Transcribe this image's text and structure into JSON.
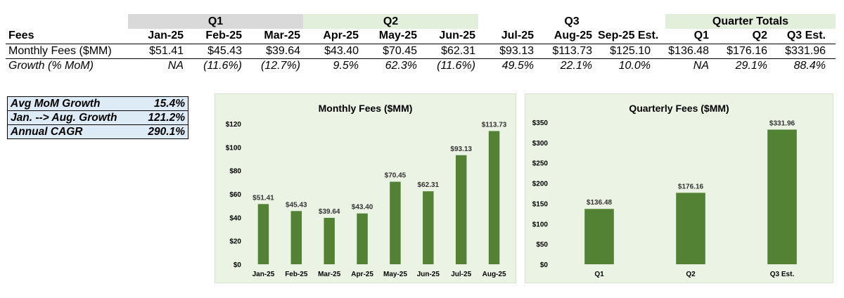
{
  "table": {
    "quarters": [
      "Q1",
      "Q2",
      "Q3",
      "Quarter Totals"
    ],
    "header": [
      "Fees",
      "Jan-25",
      "Feb-25",
      "Mar-25",
      "Apr-25",
      "May-25",
      "Jun-25",
      "Jul-25",
      "Aug-25",
      "Sep-25 Est.",
      "Q1",
      "Q2",
      "Q3 Est."
    ],
    "fees_row": [
      "Monthly Fees ($MM)",
      "$51.41",
      "$45.43",
      "$39.64",
      "$43.40",
      "$70.45",
      "$62.31",
      "$93.13",
      "$113.73",
      "$125.10",
      "$136.48",
      "$176.16",
      "$331.96"
    ],
    "growth_row": [
      "Growth (% MoM)",
      "NA",
      "(11.6%)",
      "(12.7%)",
      "9.5%",
      "62.3%",
      "(11.6%)",
      "49.5%",
      "22.1%",
      "10.0%",
      "NA",
      "29.1%",
      "88.4%"
    ]
  },
  "summary": [
    {
      "label": "Avg MoM Growth",
      "value": "15.4%"
    },
    {
      "label": "Jan. --> Aug. Growth",
      "value": "121.2%"
    },
    {
      "label": "Annual CAGR",
      "value": "290.1%"
    }
  ],
  "colors": {
    "bar": "#548235",
    "chart_bg": "#ebf3e5",
    "q1_band": "#d9d9d9",
    "green_band": "#e2efda",
    "summary_bg": "#ddebf7"
  },
  "chart_data": [
    {
      "type": "bar",
      "title": "Monthly Fees ($MM)",
      "categories": [
        "Jan-25",
        "Feb-25",
        "Mar-25",
        "Apr-25",
        "May-25",
        "Jun-25",
        "Jul-25",
        "Aug-25"
      ],
      "values": [
        51.41,
        45.43,
        39.64,
        43.4,
        70.45,
        62.31,
        93.13,
        113.73
      ],
      "data_labels": [
        "$51.41",
        "$45.43",
        "$39.64",
        "$43.40",
        "$70.45",
        "$62.31",
        "$93.13",
        "$113.73"
      ],
      "yticks": [
        0,
        20,
        40,
        60,
        80,
        100,
        120
      ],
      "ytick_labels": [
        "$0",
        "$20",
        "$40",
        "$60",
        "$80",
        "$100",
        "$120"
      ],
      "ylim": [
        0,
        120
      ],
      "grid": false,
      "xlabel": "",
      "ylabel": ""
    },
    {
      "type": "bar",
      "title": "Quarterly Fees ($MM)",
      "categories": [
        "Q1",
        "Q2",
        "Q3 Est."
      ],
      "values": [
        136.48,
        176.16,
        331.96
      ],
      "data_labels": [
        "$136.48",
        "$176.16",
        "$331.96"
      ],
      "yticks": [
        0,
        50,
        100,
        150,
        200,
        250,
        300,
        350
      ],
      "ytick_labels": [
        "$0",
        "$50",
        "$100",
        "$150",
        "$200",
        "$250",
        "$300",
        "$350"
      ],
      "ylim": [
        0,
        350
      ],
      "grid": false,
      "xlabel": "",
      "ylabel": ""
    }
  ]
}
